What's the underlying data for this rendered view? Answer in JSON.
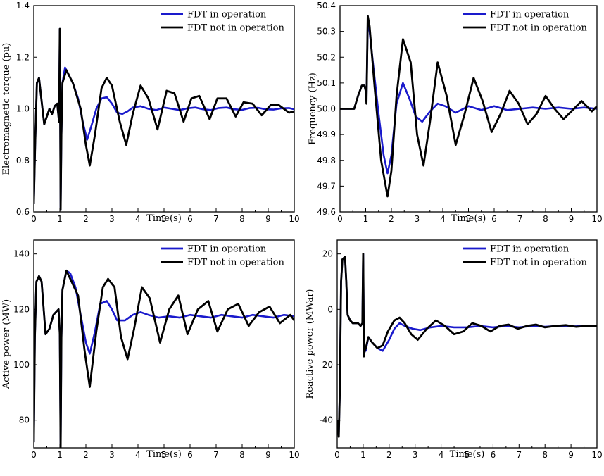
{
  "chart_data": [
    {
      "type": "line",
      "ylabel": "Electromagnetic torque (pu)",
      "xlabel": "Time(s)",
      "xlim": [
        0,
        10
      ],
      "ylim": [
        0.6,
        1.4
      ],
      "xticks": [
        0,
        1,
        2,
        3,
        4,
        5,
        6,
        7,
        8,
        9,
        10
      ],
      "yticks": [
        0.6,
        0.8,
        1.0,
        1.2,
        1.4
      ],
      "ytick_labels": [
        "0.6",
        "0.8",
        "1.0",
        "1.2",
        "1.4"
      ],
      "legend_position": "top-right",
      "grid": false,
      "series": [
        {
          "name": "FDT in operation",
          "color": "#1a1acc",
          "x": [
            0,
            0.05,
            0.12,
            0.2,
            0.3,
            0.4,
            0.5,
            0.6,
            0.7,
            0.8,
            0.9,
            0.97,
            1.0,
            1.03,
            1.06,
            1.1,
            1.2,
            1.3,
            1.5,
            1.7,
            1.9,
            2.05,
            2.2,
            2.4,
            2.6,
            2.8,
            3.0,
            3.2,
            3.4,
            3.6,
            3.8,
            4.1,
            4.4,
            4.7,
            5.0,
            5.3,
            5.6,
            5.9,
            6.2,
            6.5,
            6.8,
            7.1,
            7.4,
            7.7,
            8.0,
            8.3,
            8.6,
            8.9,
            9.2,
            9.5,
            9.8,
            10
          ],
          "y": [
            0.63,
            0.86,
            1.1,
            1.12,
            1.03,
            0.94,
            0.97,
            1.0,
            0.98,
            1.01,
            1.02,
            0.95,
            1.31,
            0.61,
            0.9,
            1.1,
            1.16,
            1.14,
            1.1,
            1.04,
            0.94,
            0.88,
            0.93,
            1.0,
            1.04,
            1.045,
            1.02,
            0.985,
            0.98,
            0.99,
            1.005,
            1.01,
            1.0,
            0.995,
            1.005,
            1.0,
            0.995,
            1.002,
            1.005,
            0.998,
            0.995,
            1.003,
            1.005,
            0.998,
            0.996,
            1.003,
            1.004,
            0.998,
            0.997,
            1.002,
            1.003,
            0.998
          ]
        },
        {
          "name": "FDT not in operation",
          "color": "#000000",
          "x": [
            0,
            0.05,
            0.12,
            0.2,
            0.3,
            0.4,
            0.5,
            0.6,
            0.7,
            0.8,
            0.9,
            0.97,
            1.0,
            1.03,
            1.06,
            1.1,
            1.25,
            1.5,
            1.8,
            2.0,
            2.15,
            2.35,
            2.6,
            2.8,
            3.0,
            3.3,
            3.55,
            3.8,
            4.1,
            4.4,
            4.75,
            5.1,
            5.4,
            5.75,
            6.05,
            6.35,
            6.75,
            7.05,
            7.4,
            7.75,
            8.05,
            8.4,
            8.75,
            9.1,
            9.4,
            9.8,
            10
          ],
          "y": [
            0.63,
            0.86,
            1.1,
            1.12,
            1.03,
            0.94,
            0.97,
            1.0,
            0.98,
            1.01,
            1.02,
            0.95,
            1.31,
            0.61,
            0.9,
            1.1,
            1.15,
            1.1,
            1.0,
            0.86,
            0.78,
            0.9,
            1.08,
            1.12,
            1.09,
            0.95,
            0.86,
            0.98,
            1.09,
            1.04,
            0.92,
            1.07,
            1.06,
            0.95,
            1.04,
            1.05,
            0.96,
            1.04,
            1.04,
            0.97,
            1.025,
            1.02,
            0.975,
            1.015,
            1.015,
            0.985,
            0.99
          ]
        }
      ]
    },
    {
      "type": "line",
      "ylabel": "Frequency (Hz)",
      "xlabel": "Time(s)",
      "xlim": [
        0,
        10
      ],
      "ylim": [
        49.6,
        50.4
      ],
      "xticks": [
        0,
        1,
        2,
        3,
        4,
        5,
        6,
        7,
        8,
        9,
        10
      ],
      "yticks": [
        49.6,
        49.7,
        49.8,
        49.9,
        50.0,
        50.1,
        50.2,
        50.3,
        50.4
      ],
      "ytick_labels": [
        "49.6",
        "49.7",
        "49.8",
        "49.9",
        "50.0",
        "50.1",
        "50.2",
        "50.3",
        "50.4"
      ],
      "legend_position": "top-right",
      "grid": false,
      "series": [
        {
          "name": "FDT in operation",
          "color": "#1a1acc",
          "x": [
            0,
            0.4,
            0.55,
            0.7,
            0.85,
            0.95,
            1.0,
            1.03,
            1.08,
            1.15,
            1.3,
            1.5,
            1.7,
            1.85,
            2.0,
            2.2,
            2.45,
            2.7,
            2.95,
            3.2,
            3.5,
            3.8,
            4.1,
            4.5,
            5.0,
            5.5,
            6.0,
            6.5,
            7.0,
            7.5,
            8.0,
            8.5,
            9.0,
            9.5,
            10
          ],
          "y": [
            50.0,
            50.0,
            50.0,
            50.05,
            50.09,
            50.09,
            50.07,
            50.03,
            50.34,
            50.3,
            50.16,
            49.98,
            49.82,
            49.75,
            49.82,
            50.02,
            50.1,
            50.04,
            49.97,
            49.95,
            49.99,
            50.02,
            50.01,
            49.985,
            50.01,
            49.995,
            50.01,
            49.995,
            50.0,
            50.005,
            50.0,
            50.005,
            50.0,
            50.005,
            50.0
          ]
        },
        {
          "name": "FDT not in operation",
          "color": "#000000",
          "x": [
            0,
            0.4,
            0.55,
            0.7,
            0.85,
            0.95,
            1.0,
            1.03,
            1.08,
            1.15,
            1.35,
            1.6,
            1.85,
            2.0,
            2.2,
            2.45,
            2.75,
            3.0,
            3.25,
            3.5,
            3.8,
            4.15,
            4.5,
            4.85,
            5.2,
            5.55,
            5.9,
            6.25,
            6.6,
            6.95,
            7.3,
            7.65,
            8.0,
            8.35,
            8.7,
            9.0,
            9.4,
            9.8,
            10
          ],
          "y": [
            50.0,
            50.0,
            50.0,
            50.05,
            50.09,
            50.09,
            50.07,
            50.02,
            50.36,
            50.32,
            50.08,
            49.8,
            49.66,
            49.76,
            50.05,
            50.27,
            50.18,
            49.9,
            49.78,
            49.95,
            50.18,
            50.05,
            49.86,
            49.98,
            50.12,
            50.03,
            49.91,
            49.98,
            50.07,
            50.02,
            49.94,
            49.98,
            50.05,
            50.0,
            49.96,
            49.99,
            50.03,
            49.99,
            50.01
          ]
        }
      ]
    },
    {
      "type": "line",
      "ylabel": "Active power (MW)",
      "xlabel": "Time(s)",
      "xlim": [
        0,
        10
      ],
      "ylim": [
        70,
        145
      ],
      "xticks": [
        0,
        1,
        2,
        3,
        4,
        5,
        6,
        7,
        8,
        9,
        10
      ],
      "yticks": [
        80,
        100,
        120,
        140
      ],
      "ytick_labels": [
        "80",
        "100",
        "120",
        "140"
      ],
      "legend_position": "top-right",
      "grid": false,
      "series": [
        {
          "name": "FDT in operation",
          "color": "#1a1acc",
          "x": [
            0,
            0.04,
            0.1,
            0.2,
            0.3,
            0.45,
            0.6,
            0.75,
            0.85,
            0.95,
            1.0,
            1.03,
            1.06,
            1.1,
            1.25,
            1.4,
            1.6,
            1.8,
            2.0,
            2.15,
            2.35,
            2.55,
            2.8,
            3.0,
            3.2,
            3.5,
            3.8,
            4.1,
            4.4,
            4.8,
            5.2,
            5.6,
            6.0,
            6.4,
            6.8,
            7.2,
            7.6,
            8.0,
            8.4,
            8.8,
            9.2,
            9.6,
            10
          ],
          "y": [
            72,
            110,
            130,
            132,
            130,
            111,
            113,
            118,
            119,
            120,
            111,
            70,
            110,
            127,
            134,
            133,
            128,
            118,
            108,
            104,
            112,
            122,
            123,
            120,
            116,
            116,
            118,
            119,
            118,
            117,
            117.5,
            117,
            118,
            117.5,
            117,
            118,
            117.5,
            117,
            118,
            117.5,
            117,
            118,
            117.5
          ]
        },
        {
          "name": "FDT not in operation",
          "color": "#000000",
          "x": [
            0,
            0.04,
            0.1,
            0.2,
            0.3,
            0.45,
            0.6,
            0.75,
            0.85,
            0.95,
            1.0,
            1.03,
            1.06,
            1.1,
            1.25,
            1.45,
            1.7,
            1.95,
            2.15,
            2.4,
            2.65,
            2.85,
            3.1,
            3.35,
            3.6,
            3.85,
            4.15,
            4.45,
            4.85,
            5.2,
            5.55,
            5.9,
            6.3,
            6.7,
            7.05,
            7.45,
            7.85,
            8.25,
            8.65,
            9.05,
            9.45,
            9.85,
            10
          ],
          "y": [
            72,
            110,
            130,
            132,
            130,
            111,
            113,
            118,
            119,
            120,
            111,
            70,
            110,
            127,
            134,
            130,
            125,
            105,
            92,
            112,
            128,
            131,
            128,
            110,
            102,
            113,
            128,
            124,
            108,
            120,
            125,
            111,
            120,
            123,
            112,
            120,
            122,
            114,
            119,
            121,
            115,
            118,
            116
          ]
        }
      ]
    },
    {
      "type": "line",
      "ylabel": "Reactive power (MWar)",
      "xlabel": "Time(s)",
      "xlim": [
        0,
        10
      ],
      "ylim": [
        -50,
        25
      ],
      "xticks": [
        0,
        1,
        2,
        3,
        4,
        5,
        6,
        7,
        8,
        9,
        10
      ],
      "yticks": [
        -40,
        -20,
        0,
        20
      ],
      "ytick_labels": [
        "-40",
        "-20",
        "0",
        "20"
      ],
      "legend_position": "top-right",
      "grid": false,
      "series": [
        {
          "name": "FDT in operation",
          "color": "#1a1acc",
          "x": [
            0,
            0.06,
            0.1,
            0.15,
            0.2,
            0.3,
            0.35,
            0.4,
            0.5,
            0.6,
            0.7,
            0.8,
            0.9,
            0.97,
            1.0,
            1.03,
            1.06,
            1.1,
            1.2,
            1.35,
            1.55,
            1.75,
            2.0,
            2.2,
            2.4,
            2.6,
            2.9,
            3.2,
            3.6,
            4.0,
            4.5,
            5.0,
            5.5,
            6.0,
            6.5,
            7.0,
            7.5,
            8.0,
            8.5,
            9.0,
            9.5,
            10
          ],
          "y": [
            -40,
            -45,
            -30,
            10,
            18,
            19,
            10,
            -2,
            -4,
            -5,
            -5,
            -5,
            -6,
            -5,
            20,
            -16,
            -15,
            -15,
            -10,
            -12,
            -14,
            -15,
            -11,
            -7,
            -5,
            -6,
            -7,
            -7.5,
            -6.5,
            -6,
            -6.5,
            -6.5,
            -6,
            -6.5,
            -6,
            -6.5,
            -6,
            -6.3,
            -6,
            -6.2,
            -6,
            -6
          ]
        },
        {
          "name": "FDT not in operation",
          "color": "#000000",
          "x": [
            0,
            0.06,
            0.1,
            0.15,
            0.2,
            0.3,
            0.35,
            0.4,
            0.5,
            0.6,
            0.7,
            0.8,
            0.9,
            0.97,
            1.0,
            1.03,
            1.06,
            1.1,
            1.2,
            1.35,
            1.55,
            1.75,
            1.95,
            2.2,
            2.4,
            2.6,
            2.85,
            3.1,
            3.45,
            3.8,
            4.15,
            4.5,
            4.85,
            5.2,
            5.55,
            5.9,
            6.25,
            6.6,
            6.95,
            7.3,
            7.65,
            8.0,
            8.4,
            8.8,
            9.2,
            9.6,
            10
          ],
          "y": [
            -40,
            -46,
            -30,
            10,
            18,
            19,
            10,
            -2,
            -4,
            -5,
            -5,
            -5,
            -6,
            -5,
            20,
            -17,
            -15,
            -14,
            -10,
            -12,
            -14,
            -13,
            -8,
            -4,
            -3,
            -5,
            -9,
            -11,
            -7,
            -4,
            -6,
            -9,
            -8,
            -5,
            -6,
            -8,
            -6,
            -5.5,
            -7,
            -6,
            -5.5,
            -6.5,
            -6,
            -5.7,
            -6.3,
            -6,
            -6
          ]
        }
      ]
    }
  ]
}
